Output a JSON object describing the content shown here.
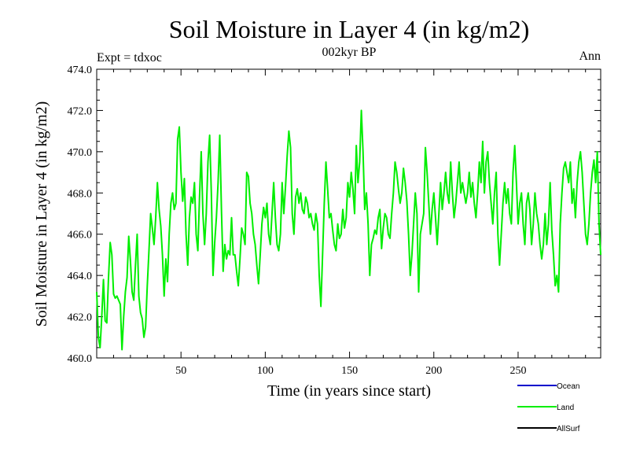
{
  "chart_data": {
    "type": "line",
    "title": "Soil Moisture in Layer 4 (in kg/m2)",
    "subtitle": "002kyr BP",
    "expt_label": "Expt = tdxoc",
    "period_label": "Ann",
    "xlabel": "Time (in years since start)",
    "ylabel": "Soil Moisture in Layer 4 (in kg/m2)",
    "xlim": [
      0,
      299
    ],
    "ylim": [
      460,
      474
    ],
    "x_ticks": [
      50,
      100,
      150,
      200,
      250
    ],
    "x_tick_labels": [
      "50",
      "100",
      "150",
      "200",
      "250"
    ],
    "y_ticks": [
      460,
      462,
      464,
      466,
      468,
      470,
      472,
      474
    ],
    "y_tick_labels": [
      "460.0",
      "462.0",
      "464.0",
      "466.0",
      "468.0",
      "470.0",
      "472.0",
      "474.0"
    ],
    "legend": [
      {
        "name": "Ocean",
        "color": "#0000cc"
      },
      {
        "name": "Land",
        "color": "#00ee00"
      },
      {
        "name": "AllSurf",
        "color": "#000000"
      }
    ],
    "series": [
      {
        "name": "Land",
        "color": "#00ee00",
        "points": [
          [
            0,
            463.2
          ],
          [
            1,
            461.0
          ],
          [
            2,
            460.5
          ],
          [
            3,
            462.0
          ],
          [
            4,
            463.8
          ],
          [
            5,
            461.8
          ],
          [
            6,
            461.7
          ],
          [
            7,
            463.9
          ],
          [
            8,
            465.6
          ],
          [
            9,
            465.0
          ],
          [
            10,
            463.1
          ],
          [
            11,
            462.9
          ],
          [
            12,
            463.0
          ],
          [
            13,
            462.8
          ],
          [
            14,
            462.6
          ],
          [
            15,
            460.4
          ],
          [
            16,
            462.0
          ],
          [
            17,
            463.2
          ],
          [
            18,
            463.9
          ],
          [
            19,
            465.9
          ],
          [
            20,
            464.7
          ],
          [
            21,
            463.2
          ],
          [
            22,
            462.8
          ],
          [
            23,
            464.5
          ],
          [
            24,
            466.0
          ],
          [
            25,
            463.0
          ],
          [
            26,
            462.2
          ],
          [
            27,
            461.9
          ],
          [
            28,
            461.0
          ],
          [
            29,
            461.5
          ],
          [
            30,
            463.5
          ],
          [
            31,
            465.2
          ],
          [
            32,
            467.0
          ],
          [
            33,
            466.3
          ],
          [
            34,
            465.5
          ],
          [
            35,
            466.8
          ],
          [
            36,
            468.5
          ],
          [
            37,
            467.2
          ],
          [
            38,
            466.4
          ],
          [
            39,
            465.0
          ],
          [
            40,
            463.0
          ],
          [
            41,
            464.8
          ],
          [
            42,
            463.7
          ],
          [
            43,
            466.0
          ],
          [
            44,
            467.5
          ],
          [
            45,
            468.0
          ],
          [
            46,
            467.2
          ],
          [
            47,
            467.5
          ],
          [
            48,
            470.6
          ],
          [
            49,
            471.2
          ],
          [
            50,
            469.0
          ],
          [
            51,
            467.6
          ],
          [
            52,
            468.7
          ],
          [
            53,
            466.0
          ],
          [
            54,
            464.5
          ],
          [
            55,
            466.8
          ],
          [
            56,
            467.8
          ],
          [
            57,
            467.5
          ],
          [
            58,
            468.5
          ],
          [
            59,
            466.0
          ],
          [
            60,
            465.2
          ],
          [
            61,
            467.8
          ],
          [
            62,
            470.0
          ],
          [
            63,
            467.0
          ],
          [
            64,
            465.5
          ],
          [
            65,
            467.0
          ],
          [
            66,
            469.5
          ],
          [
            67,
            470.8
          ],
          [
            68,
            468.0
          ],
          [
            69,
            464.0
          ],
          [
            70,
            465.6
          ],
          [
            71,
            466.8
          ],
          [
            72,
            468.5
          ],
          [
            73,
            470.8
          ],
          [
            74,
            467.2
          ],
          [
            75,
            464.2
          ],
          [
            76,
            465.5
          ],
          [
            77,
            464.8
          ],
          [
            78,
            465.2
          ],
          [
            79,
            465.0
          ],
          [
            80,
            466.8
          ],
          [
            81,
            465.0
          ],
          [
            82,
            465.0
          ],
          [
            83,
            464.2
          ],
          [
            84,
            463.5
          ],
          [
            85,
            464.8
          ],
          [
            86,
            466.3
          ],
          [
            87,
            466.0
          ],
          [
            88,
            465.5
          ],
          [
            89,
            469.0
          ],
          [
            90,
            468.8
          ],
          [
            91,
            467.5
          ],
          [
            92,
            467.0
          ],
          [
            93,
            466.0
          ],
          [
            94,
            465.5
          ],
          [
            95,
            464.5
          ],
          [
            96,
            463.6
          ],
          [
            97,
            465.0
          ],
          [
            98,
            466.5
          ],
          [
            99,
            467.3
          ],
          [
            100,
            466.8
          ],
          [
            101,
            467.5
          ],
          [
            102,
            466.0
          ],
          [
            103,
            465.5
          ],
          [
            104,
            467.0
          ],
          [
            105,
            468.5
          ],
          [
            106,
            466.8
          ],
          [
            107,
            465.5
          ],
          [
            108,
            465.2
          ],
          [
            109,
            466.0
          ],
          [
            110,
            468.5
          ],
          [
            111,
            467.0
          ],
          [
            112,
            468.3
          ],
          [
            113,
            469.8
          ],
          [
            114,
            471.0
          ],
          [
            115,
            470.2
          ],
          [
            116,
            467.0
          ],
          [
            117,
            466.0
          ],
          [
            118,
            467.8
          ],
          [
            119,
            468.2
          ],
          [
            120,
            467.5
          ],
          [
            121,
            468.0
          ],
          [
            122,
            467.2
          ],
          [
            123,
            467.0
          ],
          [
            124,
            467.8
          ],
          [
            125,
            467.5
          ],
          [
            126,
            466.8
          ],
          [
            127,
            467.0
          ],
          [
            128,
            466.5
          ],
          [
            129,
            466.2
          ],
          [
            130,
            467.0
          ],
          [
            131,
            466.5
          ],
          [
            132,
            464.0
          ],
          [
            133,
            462.5
          ],
          [
            134,
            465.0
          ],
          [
            135,
            467.5
          ],
          [
            136,
            469.5
          ],
          [
            137,
            468.2
          ],
          [
            138,
            466.8
          ],
          [
            139,
            467.0
          ],
          [
            140,
            466.2
          ],
          [
            141,
            465.5
          ],
          [
            142,
            465.2
          ],
          [
            143,
            466.5
          ],
          [
            144,
            465.8
          ],
          [
            145,
            466.0
          ],
          [
            146,
            467.2
          ],
          [
            147,
            466.3
          ],
          [
            148,
            466.8
          ],
          [
            149,
            468.5
          ],
          [
            150,
            467.8
          ],
          [
            151,
            469.0
          ],
          [
            152,
            468.2
          ],
          [
            153,
            467.0
          ],
          [
            154,
            470.3
          ],
          [
            155,
            468.5
          ],
          [
            156,
            469.5
          ],
          [
            157,
            472.0
          ],
          [
            158,
            470.0
          ],
          [
            159,
            467.2
          ],
          [
            160,
            468.0
          ],
          [
            161,
            466.5
          ],
          [
            162,
            464.0
          ],
          [
            163,
            465.5
          ],
          [
            164,
            465.8
          ],
          [
            165,
            466.2
          ],
          [
            166,
            466.0
          ],
          [
            167,
            466.8
          ],
          [
            168,
            467.2
          ],
          [
            169,
            465.3
          ],
          [
            170,
            466.3
          ],
          [
            171,
            467.0
          ],
          [
            172,
            466.8
          ],
          [
            173,
            466.0
          ],
          [
            174,
            465.8
          ],
          [
            175,
            467.0
          ],
          [
            176,
            468.0
          ],
          [
            177,
            469.5
          ],
          [
            178,
            469.0
          ],
          [
            179,
            468.2
          ],
          [
            180,
            467.5
          ],
          [
            181,
            468.0
          ],
          [
            182,
            469.2
          ],
          [
            183,
            468.5
          ],
          [
            184,
            467.6
          ],
          [
            185,
            466.0
          ],
          [
            186,
            464.0
          ],
          [
            187,
            465.0
          ],
          [
            188,
            466.5
          ],
          [
            189,
            468.0
          ],
          [
            190,
            467.0
          ],
          [
            191,
            463.2
          ],
          [
            192,
            466.0
          ],
          [
            193,
            466.5
          ],
          [
            194,
            467.0
          ],
          [
            195,
            470.2
          ],
          [
            196,
            469.0
          ],
          [
            197,
            467.5
          ],
          [
            198,
            466.0
          ],
          [
            199,
            467.2
          ],
          [
            200,
            468.0
          ],
          [
            201,
            466.8
          ],
          [
            202,
            465.5
          ],
          [
            203,
            467.0
          ],
          [
            204,
            468.5
          ],
          [
            205,
            467.2
          ],
          [
            206,
            468.0
          ],
          [
            207,
            469.0
          ],
          [
            208,
            468.0
          ],
          [
            209,
            467.5
          ],
          [
            210,
            469.5
          ],
          [
            211,
            468.0
          ],
          [
            212,
            466.8
          ],
          [
            213,
            467.5
          ],
          [
            214,
            468.5
          ],
          [
            215,
            469.5
          ],
          [
            216,
            468.0
          ],
          [
            217,
            468.5
          ],
          [
            218,
            468.0
          ],
          [
            219,
            467.5
          ],
          [
            220,
            468.0
          ],
          [
            221,
            469.0
          ],
          [
            222,
            467.8
          ],
          [
            223,
            468.5
          ],
          [
            224,
            467.5
          ],
          [
            225,
            466.8
          ],
          [
            226,
            468.0
          ],
          [
            227,
            469.5
          ],
          [
            228,
            468.5
          ],
          [
            229,
            470.5
          ],
          [
            230,
            468.0
          ],
          [
            231,
            469.5
          ],
          [
            232,
            470.0
          ],
          [
            233,
            468.5
          ],
          [
            234,
            467.5
          ],
          [
            235,
            466.5
          ],
          [
            236,
            468.0
          ],
          [
            237,
            469.0
          ],
          [
            238,
            466.0
          ],
          [
            239,
            464.5
          ],
          [
            240,
            466.0
          ],
          [
            241,
            467.5
          ],
          [
            242,
            468.5
          ],
          [
            243,
            467.5
          ],
          [
            244,
            468.2
          ],
          [
            245,
            467.0
          ],
          [
            246,
            466.5
          ],
          [
            247,
            469.0
          ],
          [
            248,
            470.3
          ],
          [
            249,
            468.5
          ],
          [
            250,
            466.5
          ],
          [
            251,
            467.5
          ],
          [
            252,
            468.0
          ],
          [
            253,
            466.5
          ],
          [
            254,
            465.5
          ],
          [
            255,
            467.5
          ],
          [
            256,
            468.0
          ],
          [
            257,
            467.2
          ],
          [
            258,
            465.5
          ],
          [
            259,
            466.5
          ],
          [
            260,
            468.0
          ],
          [
            261,
            467.0
          ],
          [
            262,
            466.5
          ],
          [
            263,
            465.5
          ],
          [
            264,
            464.8
          ],
          [
            265,
            465.5
          ],
          [
            266,
            467.0
          ],
          [
            267,
            465.5
          ],
          [
            268,
            466.5
          ],
          [
            269,
            468.5
          ],
          [
            270,
            466.2
          ],
          [
            271,
            465.0
          ],
          [
            272,
            463.5
          ],
          [
            273,
            464.0
          ],
          [
            274,
            463.2
          ],
          [
            275,
            466.5
          ],
          [
            276,
            468.0
          ],
          [
            277,
            469.2
          ],
          [
            278,
            469.5
          ],
          [
            279,
            469.0
          ],
          [
            280,
            468.5
          ],
          [
            281,
            469.5
          ],
          [
            282,
            467.5
          ],
          [
            283,
            468.2
          ],
          [
            284,
            466.8
          ],
          [
            285,
            468.5
          ],
          [
            286,
            469.5
          ],
          [
            287,
            470.0
          ],
          [
            288,
            469.0
          ],
          [
            289,
            467.5
          ],
          [
            290,
            466.0
          ],
          [
            291,
            465.5
          ],
          [
            292,
            466.5
          ],
          [
            293,
            468.0
          ],
          [
            294,
            469.0
          ],
          [
            295,
            469.6
          ],
          [
            296,
            468.5
          ],
          [
            297,
            470.0
          ],
          [
            298,
            466.5
          ],
          [
            299,
            465.0
          ]
        ]
      }
    ]
  }
}
